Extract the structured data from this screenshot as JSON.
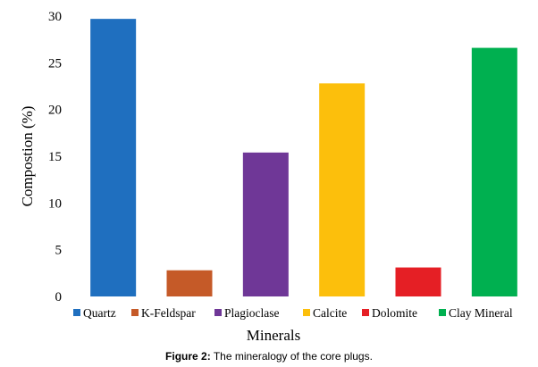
{
  "chart_data": {
    "type": "bar",
    "categories": [
      "Quartz",
      "K-Feldspar",
      "Plagioclase",
      "Calcite",
      "Dolomite",
      "Clay Mineral"
    ],
    "values": [
      29.7,
      2.8,
      15.4,
      22.8,
      3.1,
      26.6
    ],
    "colors": [
      "#1f6fbf",
      "#c55a28",
      "#6f3797",
      "#fcbf0c",
      "#e51f25",
      "#00b050"
    ],
    "xlabel": "Minerals",
    "ylabel": "Compostion (%)",
    "ylim": [
      0,
      30
    ],
    "yticks": [
      "0",
      "5",
      "10",
      "15",
      "20",
      "25",
      "30"
    ],
    "grid": false,
    "legend_position": "bottom"
  },
  "caption": {
    "label": "Figure 2:",
    "text": " The mineralogy of the core plugs."
  }
}
